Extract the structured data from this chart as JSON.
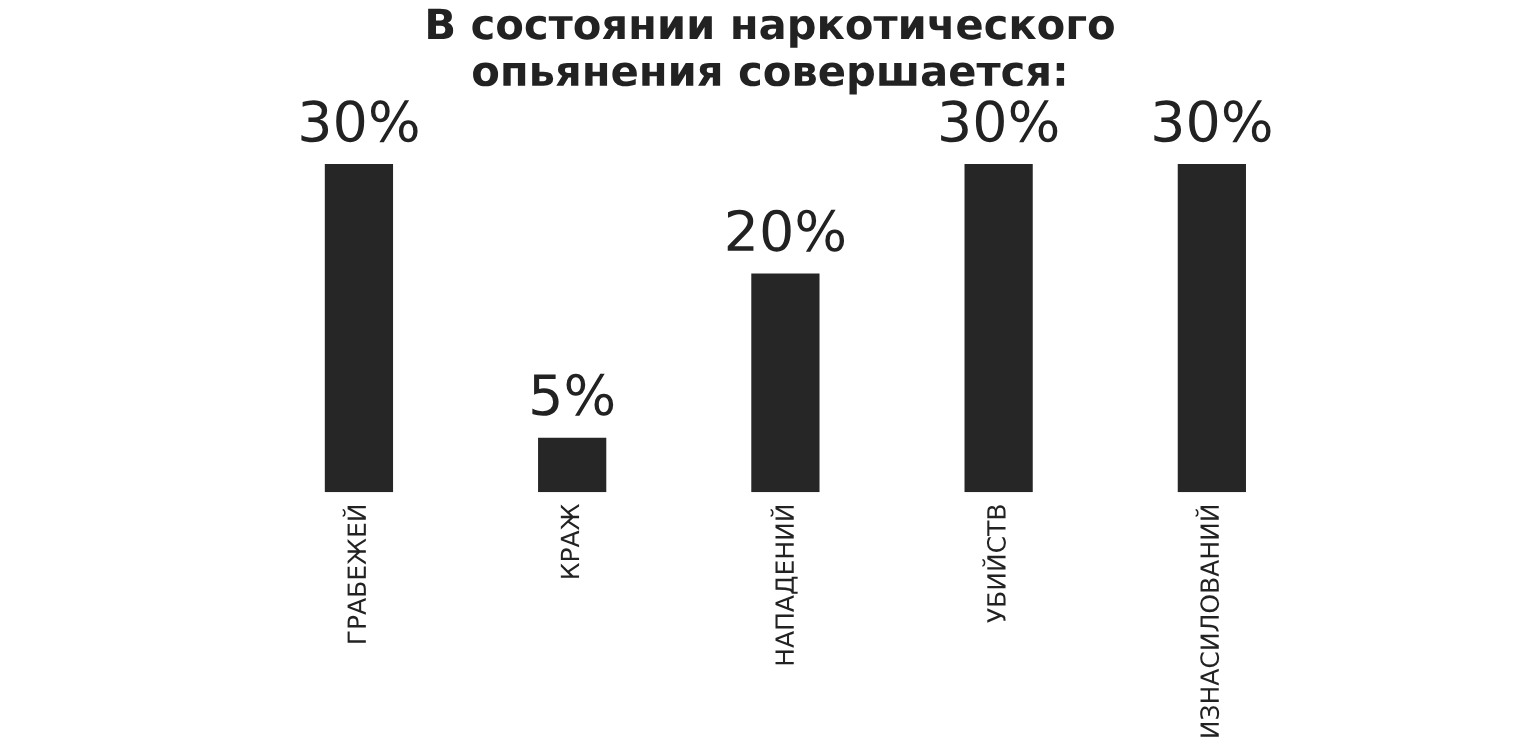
{
  "chart_data": {
    "type": "bar",
    "title": "В состоянии наркотического\nопьянения совершается:",
    "categories": [
      "ГРАБЕЖЕЙ",
      "КРАЖ",
      "НАПАДЕНИЙ",
      "УБИЙСТВ",
      "ИЗНАСИЛОВАНИЙ"
    ],
    "values": [
      30,
      5,
      20,
      30,
      30
    ],
    "value_labels": [
      "30%",
      "5%",
      "20%",
      "30%",
      "30%"
    ],
    "color": "#262626",
    "grid": false,
    "legend": false
  }
}
